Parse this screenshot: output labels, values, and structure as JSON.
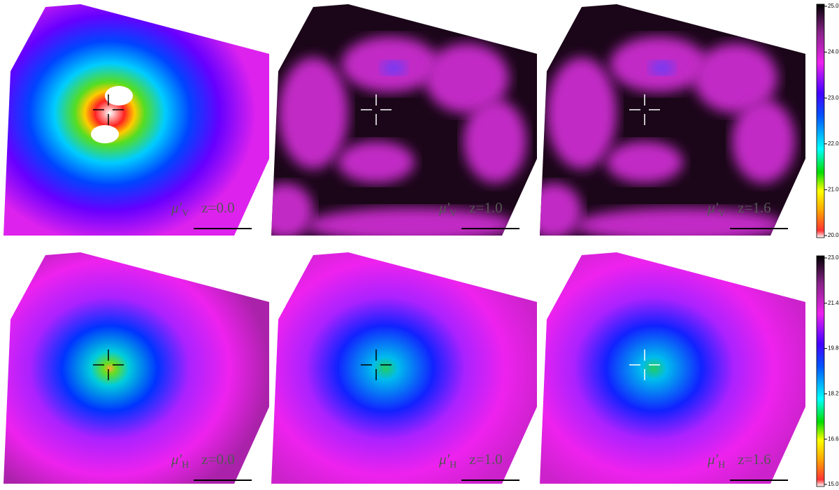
{
  "panels": [
    {
      "symbol": "μ′",
      "band": "V",
      "redshift": "z=0.0"
    },
    {
      "symbol": "μ′",
      "band": "V",
      "redshift": "z=1.0"
    },
    {
      "symbol": "μ′",
      "band": "V",
      "redshift": "z=1.6"
    },
    {
      "symbol": "μ′",
      "band": "H",
      "redshift": "z=0.0"
    },
    {
      "symbol": "μ′",
      "band": "H",
      "redshift": "z=1.0"
    },
    {
      "symbol": "μ′",
      "band": "H",
      "redshift": "z=1.6"
    }
  ],
  "colorbars": [
    {
      "ticks": [
        "25.0",
        "24.0",
        "23.0",
        "22.0",
        "21.0",
        "20.0"
      ]
    },
    {
      "ticks": [
        "23.0",
        "21.4",
        "19.8",
        "18.2",
        "16.6",
        "15.0"
      ]
    }
  ]
}
